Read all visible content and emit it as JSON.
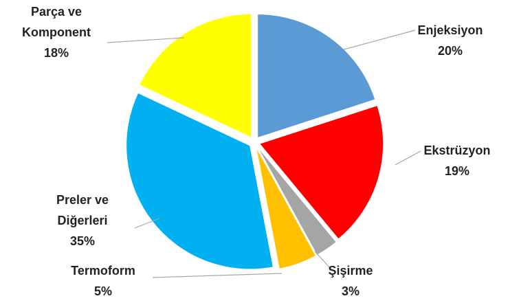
{
  "chart_data": {
    "type": "pie",
    "categories": [
      "Enjeksiyon",
      "Ekstrüzyon",
      "Şişirme",
      "Termoform",
      "Preler ve Diğerleri",
      "Parça ve Komponent"
    ],
    "values": [
      20,
      19,
      3,
      5,
      35,
      18
    ],
    "value_labels": [
      "20%",
      "19%",
      "3%",
      "5%",
      "35%",
      "18%"
    ],
    "colors": [
      "#5b9bd5",
      "#ff0000",
      "#a5a5a5",
      "#ffc000",
      "#00b0f0",
      "#ffff00"
    ]
  }
}
